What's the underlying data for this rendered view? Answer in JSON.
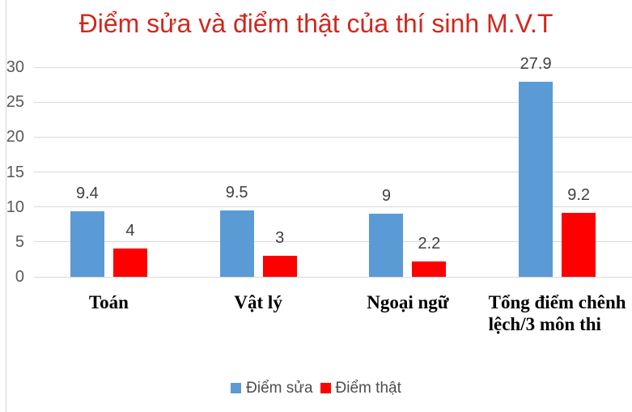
{
  "colors": {
    "background": "#FFFFFF",
    "title": "#D0281E",
    "gridline": "#D9D9D9",
    "axis_tick_text": "#595959",
    "value_label_text": "#404040",
    "category_label_text": "#000000",
    "legend_text": "#4D4D4D",
    "left_border": "#D6D6D6"
  },
  "chart_data": {
    "type": "bar",
    "title": "Điểm sửa và điểm thật của thí sinh M.V.T",
    "categories": [
      "Toán",
      "Vật lý",
      "Ngoại ngữ",
      "Tổng điểm chênh\nlệch/3 môn thi"
    ],
    "series": [
      {
        "name": "Điểm sửa",
        "color": "#5B9BD5",
        "values": [
          9.4,
          9.5,
          9,
          27.9
        ]
      },
      {
        "name": "Điểm thật",
        "color": "#FF0000",
        "values": [
          4,
          3,
          2.2,
          9.2
        ]
      }
    ],
    "value_labels": [
      [
        "9.4",
        "9.5",
        "9",
        "27.9"
      ],
      [
        "4",
        "3",
        "2.2",
        "9.2"
      ]
    ],
    "yticks": [
      0,
      5,
      10,
      15,
      20,
      25,
      30
    ],
    "ylim": [
      0,
      30
    ],
    "xlabel": "",
    "ylabel": "",
    "grid": true,
    "legend_position": "bottom"
  }
}
